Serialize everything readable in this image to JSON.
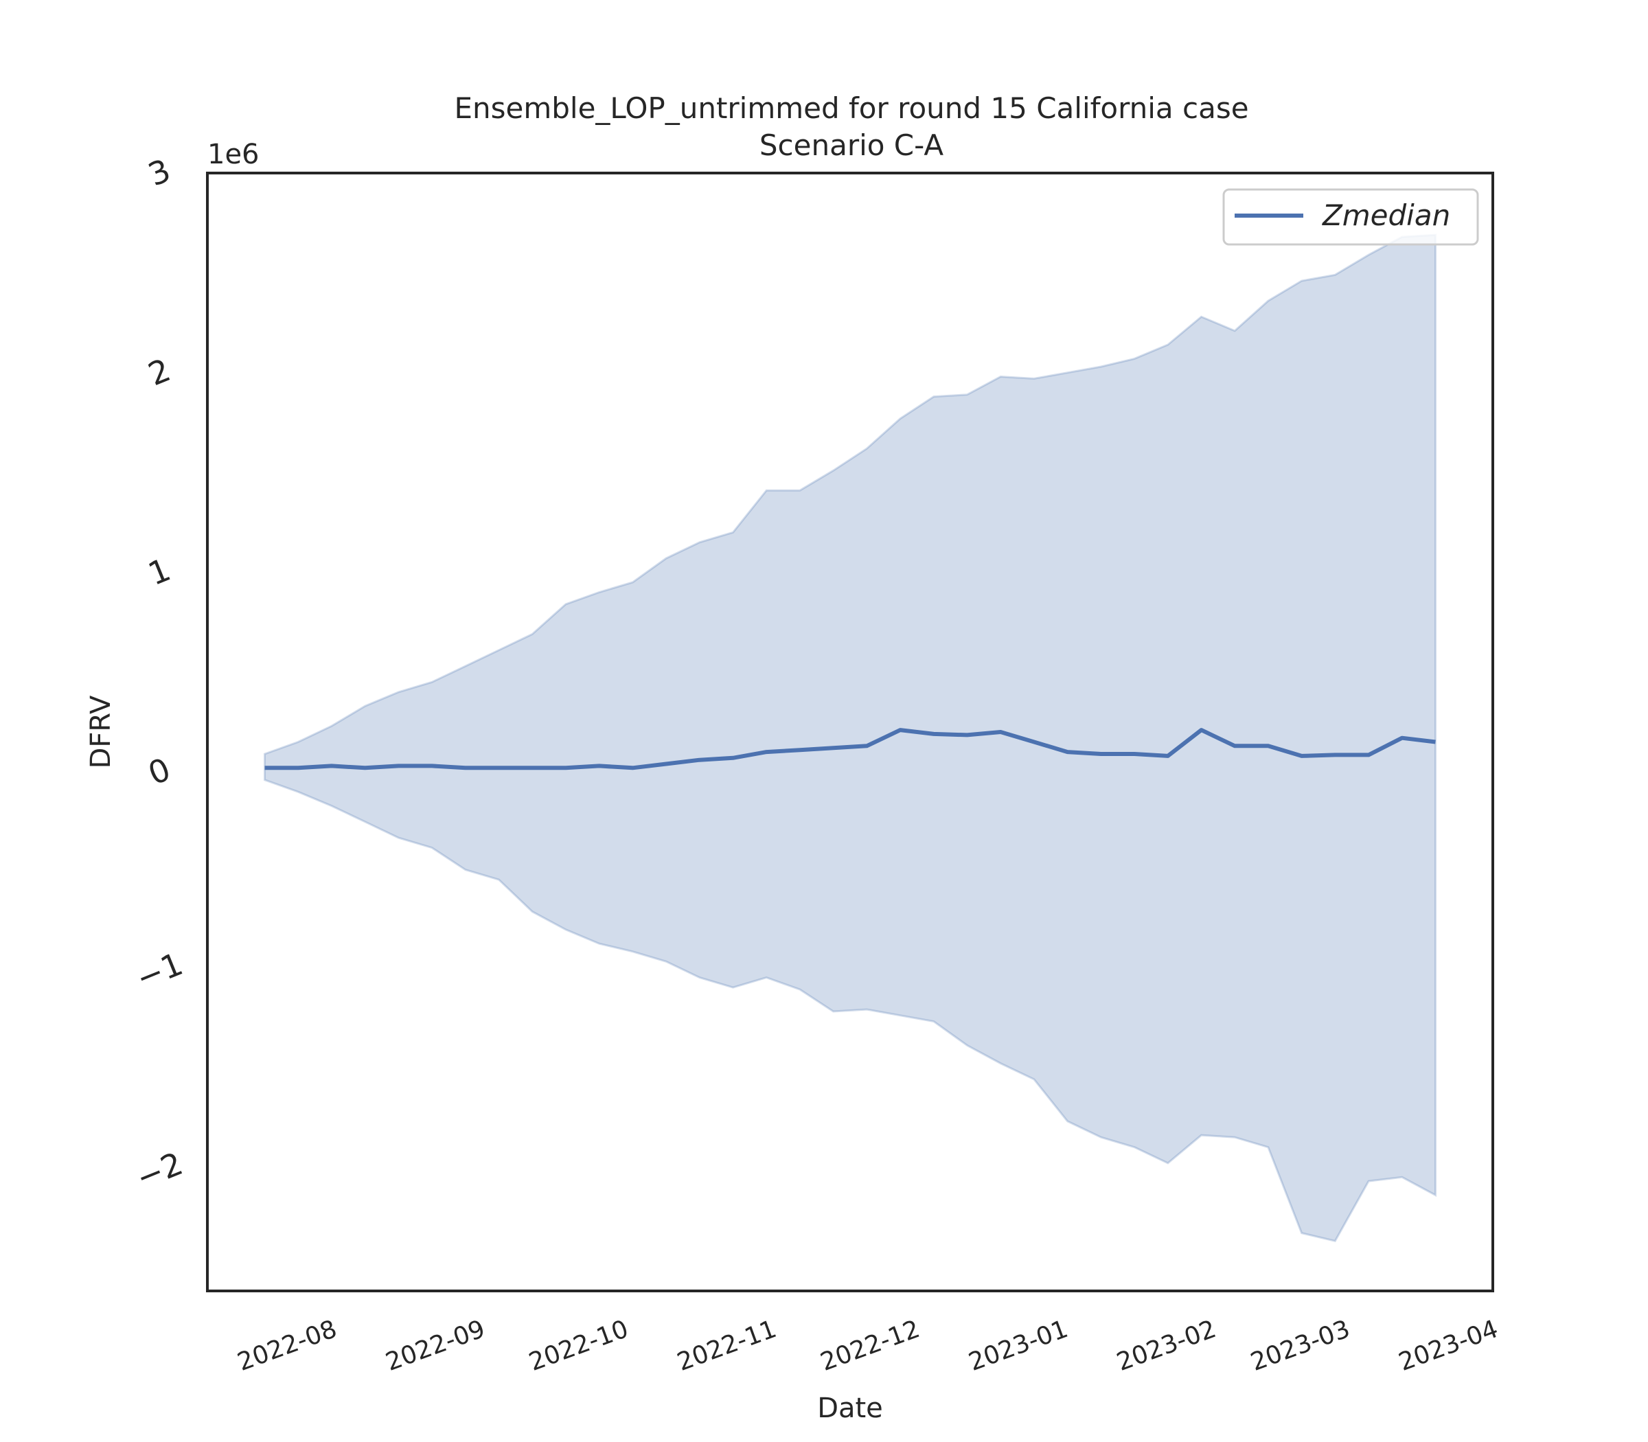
{
  "chart_data": {
    "type": "line",
    "title": "Ensemble_LOP_untrimmed for round 15 California case",
    "subtitle": "Scenario C-A",
    "xlabel": "Date",
    "ylabel": "DFRV",
    "y_offset_label": "1e6",
    "y_ticks": [
      {
        "value": -2000000,
        "label": "−2"
      },
      {
        "value": -1000000,
        "label": "−1"
      },
      {
        "value": 0,
        "label": "0"
      },
      {
        "value": 1000000,
        "label": "1"
      },
      {
        "value": 2000000,
        "label": "2"
      },
      {
        "value": 3000000,
        "label": "3"
      }
    ],
    "x_ticks": [
      {
        "value": "2022-08-01",
        "label": "2022-08"
      },
      {
        "value": "2022-09-01",
        "label": "2022-09"
      },
      {
        "value": "2022-10-01",
        "label": "2022-10"
      },
      {
        "value": "2022-11-01",
        "label": "2022-11"
      },
      {
        "value": "2022-12-01",
        "label": "2022-12"
      },
      {
        "value": "2023-01-01",
        "label": "2023-01"
      },
      {
        "value": "2023-02-01",
        "label": "2023-02"
      },
      {
        "value": "2023-03-01",
        "label": "2023-03"
      },
      {
        "value": "2023-04-01",
        "label": "2023-04"
      }
    ],
    "xlim": [
      "2022-07-06",
      "2023-04-01"
    ],
    "ylim": [
      -2600000,
      3000000
    ],
    "grid": false,
    "legend_position": "top-right",
    "colors": {
      "line": "#4c72b0",
      "band": "#4c72b0",
      "axes": "#262626"
    },
    "x": [
      "2022-07-18",
      "2022-07-25",
      "2022-08-01",
      "2022-08-08",
      "2022-08-15",
      "2022-08-22",
      "2022-08-29",
      "2022-09-05",
      "2022-09-12",
      "2022-09-19",
      "2022-09-26",
      "2022-10-03",
      "2022-10-10",
      "2022-10-17",
      "2022-10-24",
      "2022-10-31",
      "2022-11-07",
      "2022-11-14",
      "2022-11-21",
      "2022-11-28",
      "2022-12-05",
      "2022-12-12",
      "2022-12-19",
      "2022-12-26",
      "2023-01-02",
      "2023-01-09",
      "2023-01-16",
      "2023-01-23",
      "2023-01-30",
      "2023-02-06",
      "2023-02-13",
      "2023-02-20",
      "2023-02-27",
      "2023-03-06",
      "2023-03-13",
      "2023-03-20"
    ],
    "series": [
      {
        "name": "Zmedian",
        "values": [
          20000,
          20000,
          30000,
          20000,
          30000,
          30000,
          20000,
          20000,
          20000,
          20000,
          30000,
          20000,
          40000,
          60000,
          70000,
          100000,
          110000,
          120000,
          130000,
          210000,
          190000,
          185000,
          200000,
          150000,
          100000,
          90000,
          90000,
          80000,
          210000,
          130000,
          130000,
          80000,
          85000,
          85000,
          170000,
          150000
        ]
      }
    ],
    "band": {
      "upper": [
        90000,
        150000,
        230000,
        330000,
        400000,
        450000,
        530000,
        610000,
        690000,
        840000,
        900000,
        950000,
        1070000,
        1150000,
        1200000,
        1410000,
        1410000,
        1510000,
        1620000,
        1770000,
        1880000,
        1890000,
        1980000,
        1970000,
        2000000,
        2030000,
        2070000,
        2140000,
        2280000,
        2210000,
        2360000,
        2460000,
        2490000,
        2590000,
        2680000,
        2690000
      ],
      "lower": [
        -40000,
        -100000,
        -170000,
        -250000,
        -330000,
        -380000,
        -490000,
        -540000,
        -700000,
        -790000,
        -860000,
        -900000,
        -950000,
        -1030000,
        -1080000,
        -1030000,
        -1090000,
        -1200000,
        -1190000,
        -1220000,
        -1250000,
        -1370000,
        -1460000,
        -1540000,
        -1750000,
        -1830000,
        -1880000,
        -1960000,
        -1820000,
        -1830000,
        -1880000,
        -2310000,
        -2350000,
        -2050000,
        -2030000,
        -2120000
      ]
    }
  }
}
